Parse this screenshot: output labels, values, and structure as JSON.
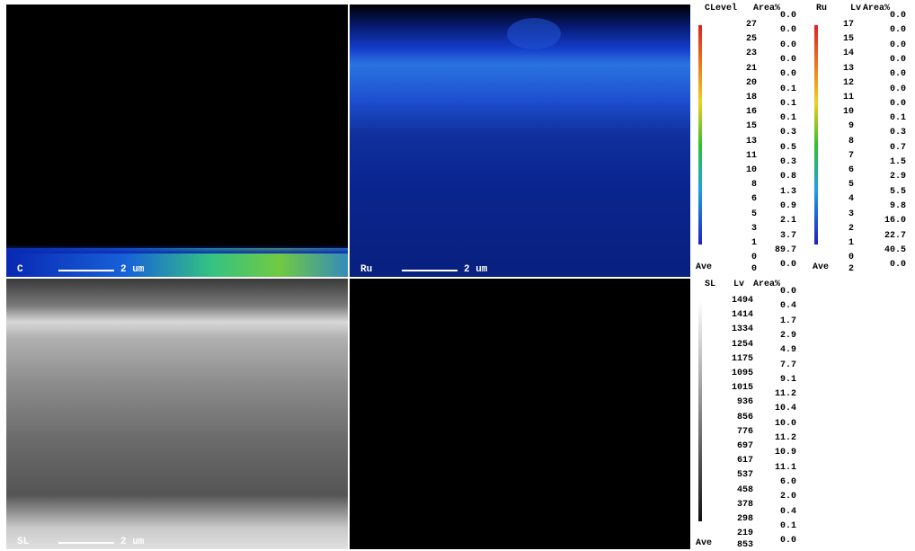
{
  "panels": [
    {
      "label": "C",
      "scale": "2 um"
    },
    {
      "label": "Ru",
      "scale": "2 um"
    },
    {
      "label": "SL",
      "scale": "2 um"
    }
  ],
  "legends": [
    {
      "element": "C",
      "level_header": "Level",
      "area_header": "Area%",
      "levels": [
        "27",
        "25",
        "23",
        "21",
        "20",
        "18",
        "16",
        "15",
        "13",
        "11",
        "10",
        "8",
        "6",
        "5",
        "3",
        "1",
        "0"
      ],
      "ave_label": "Ave",
      "ave_value": "0",
      "areas": [
        "0.0",
        "0.0",
        "0.0",
        "0.0",
        "0.0",
        "0.1",
        "0.1",
        "0.1",
        "0.3",
        "0.5",
        "0.3",
        "0.8",
        "1.3",
        "0.9",
        "2.1",
        "3.7",
        "89.7",
        "0.0"
      ]
    },
    {
      "element": "Ru",
      "level_header": "Lv",
      "area_header": "Area%",
      "levels": [
        "17",
        "15",
        "14",
        "13",
        "12",
        "11",
        "10",
        "9",
        "8",
        "7",
        "6",
        "5",
        "4",
        "3",
        "2",
        "1",
        "0"
      ],
      "ave_label": "Ave",
      "ave_value": "2",
      "areas": [
        "0.0",
        "0.0",
        "0.0",
        "0.0",
        "0.0",
        "0.0",
        "0.0",
        "0.1",
        "0.3",
        "0.7",
        "1.5",
        "2.9",
        "5.5",
        "9.8",
        "16.0",
        "22.7",
        "40.5",
        "0.0"
      ]
    },
    {
      "element": "SL",
      "level_header": "Lv",
      "area_header": "Area%",
      "levels": [
        "1494",
        "1414",
        "1334",
        "1254",
        "1175",
        "1095",
        "1015",
        "936",
        "856",
        "776",
        "697",
        "617",
        "537",
        "458",
        "378",
        "298",
        "219"
      ],
      "ave_label": "Ave",
      "ave_value": "853",
      "areas": [
        "0.0",
        "0.4",
        "1.7",
        "2.9",
        "4.9",
        "7.7",
        "9.1",
        "11.2",
        "10.4",
        "10.0",
        "11.2",
        "10.9",
        "11.1",
        "6.0",
        "2.0",
        "0.4",
        "0.1",
        "0.0"
      ]
    }
  ]
}
